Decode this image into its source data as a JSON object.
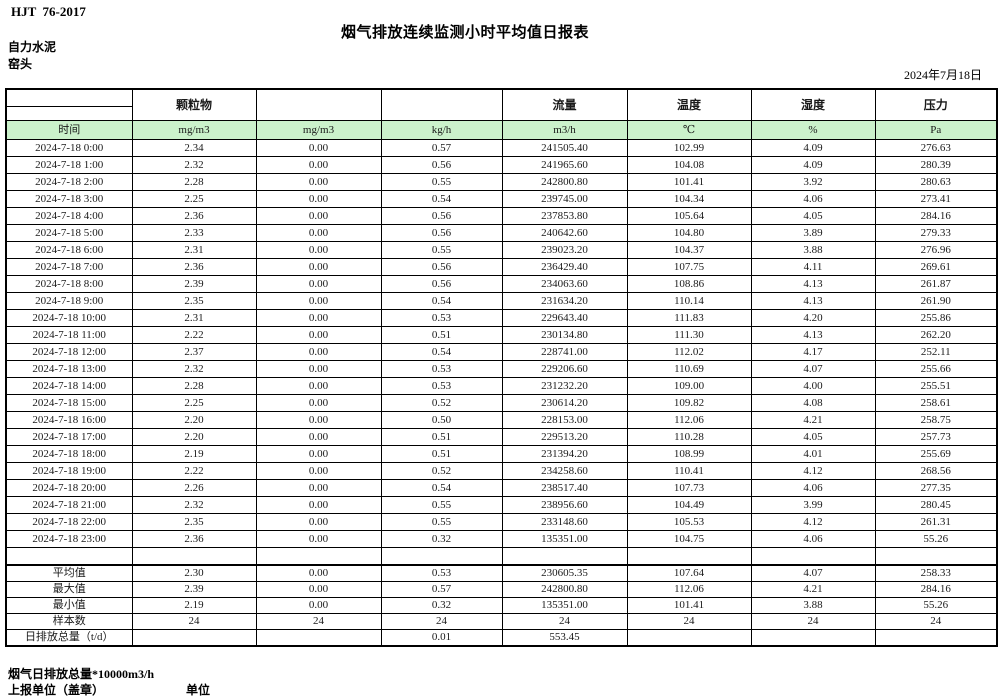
{
  "header": {
    "standard_code": "HJT  76-2017",
    "title": "烟气排放连续监测小时平均值日报表",
    "enterprise": "自力水泥",
    "monitoring_point": "窑头",
    "date": "2024年7月18日"
  },
  "table": {
    "pollutant_headers": [
      "颗粒物",
      "",
      "",
      "流量",
      "温度",
      "湿度",
      "压力"
    ],
    "unit_row": [
      "时间",
      "mg/m3",
      "mg/m3",
      "kg/h",
      "m3/h",
      "℃",
      "%",
      "Pa"
    ],
    "rows": [
      [
        "2024-7-18 0:00",
        "2.34",
        "0.00",
        "0.57",
        "241505.40",
        "102.99",
        "4.09",
        "276.63"
      ],
      [
        "2024-7-18 1:00",
        "2.32",
        "0.00",
        "0.56",
        "241965.60",
        "104.08",
        "4.09",
        "280.39"
      ],
      [
        "2024-7-18 2:00",
        "2.28",
        "0.00",
        "0.55",
        "242800.80",
        "101.41",
        "3.92",
        "280.63"
      ],
      [
        "2024-7-18 3:00",
        "2.25",
        "0.00",
        "0.54",
        "239745.00",
        "104.34",
        "4.06",
        "273.41"
      ],
      [
        "2024-7-18 4:00",
        "2.36",
        "0.00",
        "0.56",
        "237853.80",
        "105.64",
        "4.05",
        "284.16"
      ],
      [
        "2024-7-18 5:00",
        "2.33",
        "0.00",
        "0.56",
        "240642.60",
        "104.80",
        "3.89",
        "279.33"
      ],
      [
        "2024-7-18 6:00",
        "2.31",
        "0.00",
        "0.55",
        "239023.20",
        "104.37",
        "3.88",
        "276.96"
      ],
      [
        "2024-7-18 7:00",
        "2.36",
        "0.00",
        "0.56",
        "236429.40",
        "107.75",
        "4.11",
        "269.61"
      ],
      [
        "2024-7-18 8:00",
        "2.39",
        "0.00",
        "0.56",
        "234063.60",
        "108.86",
        "4.13",
        "261.87"
      ],
      [
        "2024-7-18 9:00",
        "2.35",
        "0.00",
        "0.54",
        "231634.20",
        "110.14",
        "4.13",
        "261.90"
      ],
      [
        "2024-7-18 10:00",
        "2.31",
        "0.00",
        "0.53",
        "229643.40",
        "111.83",
        "4.20",
        "255.86"
      ],
      [
        "2024-7-18 11:00",
        "2.22",
        "0.00",
        "0.51",
        "230134.80",
        "111.30",
        "4.13",
        "262.20"
      ],
      [
        "2024-7-18 12:00",
        "2.37",
        "0.00",
        "0.54",
        "228741.00",
        "112.02",
        "4.17",
        "252.11"
      ],
      [
        "2024-7-18 13:00",
        "2.32",
        "0.00",
        "0.53",
        "229206.60",
        "110.69",
        "4.07",
        "255.66"
      ],
      [
        "2024-7-18 14:00",
        "2.28",
        "0.00",
        "0.53",
        "231232.20",
        "109.00",
        "4.00",
        "255.51"
      ],
      [
        "2024-7-18 15:00",
        "2.25",
        "0.00",
        "0.52",
        "230614.20",
        "109.82",
        "4.08",
        "258.61"
      ],
      [
        "2024-7-18 16:00",
        "2.20",
        "0.00",
        "0.50",
        "228153.00",
        "112.06",
        "4.21",
        "258.75"
      ],
      [
        "2024-7-18 17:00",
        "2.20",
        "0.00",
        "0.51",
        "229513.20",
        "110.28",
        "4.05",
        "257.73"
      ],
      [
        "2024-7-18 18:00",
        "2.19",
        "0.00",
        "0.51",
        "231394.20",
        "108.99",
        "4.01",
        "255.69"
      ],
      [
        "2024-7-18 19:00",
        "2.22",
        "0.00",
        "0.52",
        "234258.60",
        "110.41",
        "4.12",
        "268.56"
      ],
      [
        "2024-7-18 20:00",
        "2.26",
        "0.00",
        "0.54",
        "238517.40",
        "107.73",
        "4.06",
        "277.35"
      ],
      [
        "2024-7-18 21:00",
        "2.32",
        "0.00",
        "0.55",
        "238956.60",
        "104.49",
        "3.99",
        "280.45"
      ],
      [
        "2024-7-18 22:00",
        "2.35",
        "0.00",
        "0.55",
        "233148.60",
        "105.53",
        "4.12",
        "261.31"
      ],
      [
        "2024-7-18 23:00",
        "2.36",
        "0.00",
        "0.32",
        "135351.00",
        "104.75",
        "4.06",
        "55.26"
      ]
    ],
    "spacer_row": [
      "",
      "",
      "",
      "",
      "",
      "",
      "",
      ""
    ],
    "summary_rows": [
      [
        "平均值",
        "2.30",
        "0.00",
        "0.53",
        "230605.35",
        "107.64",
        "4.07",
        "258.33"
      ],
      [
        "最大值",
        "2.39",
        "0.00",
        "0.57",
        "242800.80",
        "112.06",
        "4.21",
        "284.16"
      ],
      [
        "最小值",
        "2.19",
        "0.00",
        "0.32",
        "135351.00",
        "101.41",
        "3.88",
        "55.26"
      ],
      [
        "样本数",
        "24",
        "24",
        "24",
        "24",
        "24",
        "24",
        "24"
      ],
      [
        "日排放总量（t/d）",
        "",
        "",
        "0.01",
        "553.45",
        "",
        "",
        ""
      ]
    ]
  },
  "footer": {
    "note": "烟气日排放总量*10000m3/h",
    "report_unit_label": "上报单位（盖章）",
    "unit_label": "单位"
  },
  "colors": {
    "unit_row_green": "#CBF2CB",
    "border": "#000000"
  }
}
